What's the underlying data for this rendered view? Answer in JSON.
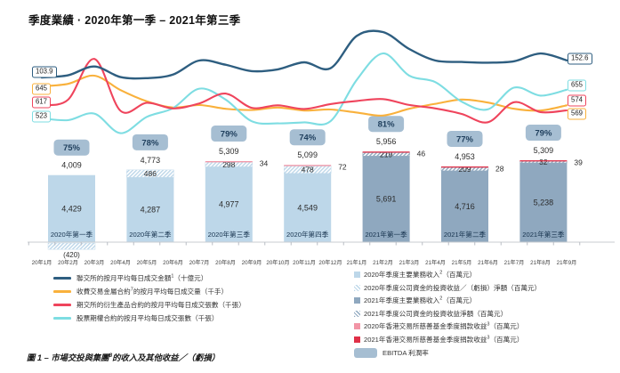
{
  "title": "季度業績 · 2020年第一季 – 2021年第三季",
  "caption": {
    "pre": "圖 1 – 市場交投與集團",
    "sup": "8",
    "post": "的收入及其他收益／（虧損）"
  },
  "colors": {
    "sehk": "#2e5e80",
    "lme": "#f9b13c",
    "futures": "#ef445c",
    "options": "#7edde2",
    "bar2020": "#bdd7e9",
    "bar2021": "#8fa8bf",
    "donation2020": "#f295a6",
    "donation2021": "#e03048",
    "badge": "#a6bed2",
    "badge_text": "#1e3e5c",
    "quarter_text": "#17334e",
    "value_text": "#2b2b2b",
    "axis": "#c9ccd1",
    "tick": "#b9bdc4",
    "month_text": "#444444"
  },
  "chart_data": {
    "type": "combo",
    "title": "季度業績 · 2020年第一季 – 2021年第三季",
    "x_months": [
      "20年1月",
      "20年2月",
      "20年3月",
      "20年4月",
      "20年5月",
      "20年6月",
      "20年7月",
      "20年8月",
      "20年9月",
      "20年10月",
      "20年11月",
      "20年12月",
      "21年1月",
      "21年2月",
      "21年3月",
      "21年4月",
      "21年5月",
      "21年6月",
      "21年7月",
      "21年8月",
      "21年9月"
    ],
    "line_series": [
      {
        "id": "sehk",
        "name": "聯交所的按月平均每日成交金額（十億元）",
        "start_label": "103.9",
        "end_label": "152.6",
        "values": [
          103.9,
          110,
          135,
          105,
          102,
          112,
          152,
          140,
          122,
          127,
          147,
          130,
          222,
          233,
          185,
          152,
          148,
          146,
          150,
          172,
          152.6
        ]
      },
      {
        "id": "lme",
        "name": "收費交易金屬合約的按月平均每日成交量（千手）",
        "start_label": "645",
        "end_label": "569",
        "values": [
          645,
          655,
          688,
          630,
          585,
          560,
          570,
          555,
          550,
          560,
          548,
          552,
          540,
          528,
          555,
          575,
          592,
          580,
          555,
          548,
          569
        ]
      },
      {
        "id": "futures",
        "name": "期交所的衍生產品合約的按月平均每日成交張數（千張）",
        "start_label": "617",
        "end_label": "574",
        "values": [
          617,
          660,
          990,
          570,
          635,
          590,
          630,
          710,
          595,
          615,
          585,
          625,
          650,
          665,
          618,
          590,
          545,
          478,
          640,
          560,
          574
        ]
      },
      {
        "id": "options",
        "name": "股票期權合約的按月平均每日成交張數（千張）",
        "start_label": "523",
        "end_label": "655",
        "values": [
          523,
          515,
          545,
          455,
          530,
          570,
          660,
          610,
          510,
          500,
          505,
          510,
          700,
          822,
          720,
          690,
          600,
          565,
          665,
          628,
          655
        ]
      }
    ],
    "bar_series": {
      "unit": "百萬元",
      "quarters": [
        "2020年第一季",
        "2020年第二季",
        "2020年第三季",
        "2020年第四季",
        "2021年第一季",
        "2021年第二季",
        "2021年第三季"
      ],
      "ebitda_margin": [
        "75%",
        "78%",
        "79%",
        "74%",
        "81%",
        "77%",
        "79%"
      ],
      "total_labels": [
        "4,009",
        "4,773",
        "5,309",
        "5,099",
        "5,956",
        "4,953",
        "5,309"
      ],
      "core_revenue": [
        4429,
        4287,
        4977,
        4549,
        5691,
        4716,
        5238
      ],
      "core_labels": [
        "4,429",
        "4,287",
        "4,977",
        "4,549",
        "5,691",
        "4,716",
        "5,238"
      ],
      "investment_income": [
        -420,
        486,
        298,
        478,
        219,
        209,
        32
      ],
      "investment_labels": [
        "(420)",
        "486",
        "298",
        "478",
        "219",
        "209",
        "32"
      ],
      "donation_income": [
        0,
        0,
        34,
        72,
        46,
        28,
        39
      ],
      "donation_labels": [
        "",
        "",
        "34",
        "72",
        "46",
        "28",
        "39"
      ]
    }
  },
  "legend_lines": [
    {
      "series": "sehk",
      "pre": "聯交所的按月平均每日成交金額",
      "sup": "1",
      "post": "（十億元）"
    },
    {
      "series": "lme",
      "pre": "收費交易金屬合約",
      "sup": "7",
      "post": "的按月平均每日成交量（千手）"
    },
    {
      "series": "futures",
      "pre": "期交所的衍生產品合約的按月平均每日成交張數（千張）",
      "sup": "",
      "post": ""
    },
    {
      "series": "options",
      "pre": "股票期權合約的按月平均每日成交張數（千張）",
      "sup": "",
      "post": ""
    }
  ],
  "legend_bars": [
    {
      "swatch": "solid2020",
      "pre": "2020年季度主要業務收入",
      "sup": "2",
      "post": "（百萬元）"
    },
    {
      "swatch": "hatch2020",
      "pre": "2020年季度公司資金的投資收益／（虧損）淨額（百萬元）",
      "sup": "",
      "post": ""
    },
    {
      "swatch": "solid2021",
      "pre": "2021年季度主要業務收入",
      "sup": "2",
      "post": "（百萬元）"
    },
    {
      "swatch": "hatch2021",
      "pre": "2021年季度公司資金的投資收益淨額（百萬元）",
      "sup": "",
      "post": ""
    },
    {
      "swatch": "pink",
      "pre": "2020年香港交易所慈善基金季度捐款收益",
      "sup": "3",
      "post": "（百萬元）"
    },
    {
      "swatch": "red",
      "pre": "2021年香港交易所慈善基金季度捐款收益",
      "sup": "3",
      "post": "（百萬元）"
    },
    {
      "swatch": "ebitda",
      "pre": "EBITDA 利潤率",
      "sup": "",
      "post": ""
    }
  ]
}
